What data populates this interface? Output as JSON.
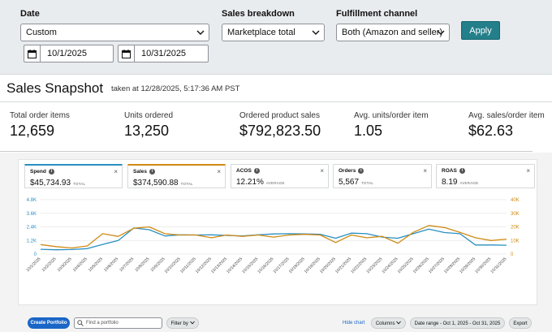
{
  "filters": {
    "date": {
      "label": "Date",
      "value": "Custom",
      "start": "10/1/2025",
      "end": "10/31/2025"
    },
    "sales_breakdown": {
      "label": "Sales breakdown",
      "value": "Marketplace total"
    },
    "fulfillment": {
      "label": "Fulfillment channel",
      "value": "Both (Amazon and seller)"
    },
    "apply_label": "Apply"
  },
  "snapshot": {
    "title": "Sales Snapshot",
    "taken_at": "taken at 12/28/2025, 5:17:36 AM PST",
    "metrics": [
      {
        "label": "Total order items",
        "value": "12,659"
      },
      {
        "label": "Units ordered",
        "value": "13,250"
      },
      {
        "label": "Ordered product sales",
        "value": "$792,823.50"
      },
      {
        "label": "Avg. units/order item",
        "value": "1.05"
      },
      {
        "label": "Avg. sales/order item",
        "value": "$62.63"
      }
    ]
  },
  "metric_cards": [
    {
      "name": "Spend",
      "value": "$45,734.93",
      "sub": "TOTAL",
      "accent": "#2a8fc1"
    },
    {
      "name": "Sales",
      "value": "$374,590.88",
      "sub": "TOTAL",
      "accent": "#cf8a14"
    },
    {
      "name": "ACOS",
      "value": "12.21%",
      "sub": "AVERAGE",
      "accent": ""
    },
    {
      "name": "Orders",
      "value": "5,567",
      "sub": "TOTAL",
      "accent": ""
    },
    {
      "name": "ROAS",
      "value": "8.19",
      "sub": "AVERAGE",
      "accent": ""
    }
  ],
  "icons": {
    "info": "i",
    "close": "×"
  },
  "chart_data": {
    "type": "line",
    "x": [
      "10/1/2025",
      "10/2/2025",
      "10/3/2025",
      "10/4/2025",
      "10/5/2025",
      "10/6/2025",
      "10/7/2025",
      "10/8/2025",
      "10/9/2025",
      "10/10/2025",
      "10/11/2025",
      "10/12/2025",
      "10/13/2025",
      "10/14/2025",
      "10/15/2025",
      "10/16/2025",
      "10/17/2025",
      "10/18/2025",
      "10/19/2025",
      "10/20/2025",
      "10/21/2025",
      "10/22/2025",
      "10/23/2025",
      "10/24/2025",
      "10/25/2025",
      "10/26/2025",
      "10/27/2025",
      "10/28/2025",
      "10/29/2025",
      "10/30/2025",
      "10/31/2025"
    ],
    "left_axis": {
      "ticks": [
        "0",
        "1.2K",
        "2.4K",
        "3.6K",
        "4.8K"
      ],
      "min": 0,
      "max": 4800,
      "color": "#2a8fc1"
    },
    "right_axis": {
      "ticks": [
        "0",
        "10K",
        "20K",
        "30K",
        "40K"
      ],
      "min": 0,
      "max": 40000,
      "color": "#cf8a14"
    },
    "series": [
      {
        "name": "Spend",
        "axis": "left",
        "color": "#2a8fc1",
        "values": [
          420,
          380,
          400,
          480,
          850,
          1200,
          2300,
          2150,
          1600,
          1700,
          1680,
          1700,
          1650,
          1600,
          1700,
          1780,
          1800,
          1780,
          1750,
          1400,
          1850,
          1800,
          1500,
          1400,
          1800,
          2200,
          1900,
          1800,
          800,
          800,
          780
        ]
      },
      {
        "name": "Sales",
        "axis": "right",
        "color": "#cf8a14",
        "values": [
          7000,
          5500,
          4500,
          6000,
          15000,
          13000,
          19000,
          20000,
          15000,
          14000,
          14000,
          12000,
          14000,
          13000,
          14000,
          12500,
          14000,
          14500,
          14000,
          8500,
          14000,
          12000,
          13000,
          8000,
          16000,
          21000,
          19500,
          16000,
          12000,
          10000,
          11000
        ]
      }
    ],
    "grid": true
  },
  "toolbar": {
    "create_label": "Create Portfolio",
    "search_placeholder": "Find a portfolio",
    "filter_label": "Filter by",
    "hide_chart": "Hide chart",
    "columns_label": "Columns",
    "date_range_label": "Date range - Oct 1, 2025 - Oct 31, 2025",
    "export_label": "Export"
  }
}
